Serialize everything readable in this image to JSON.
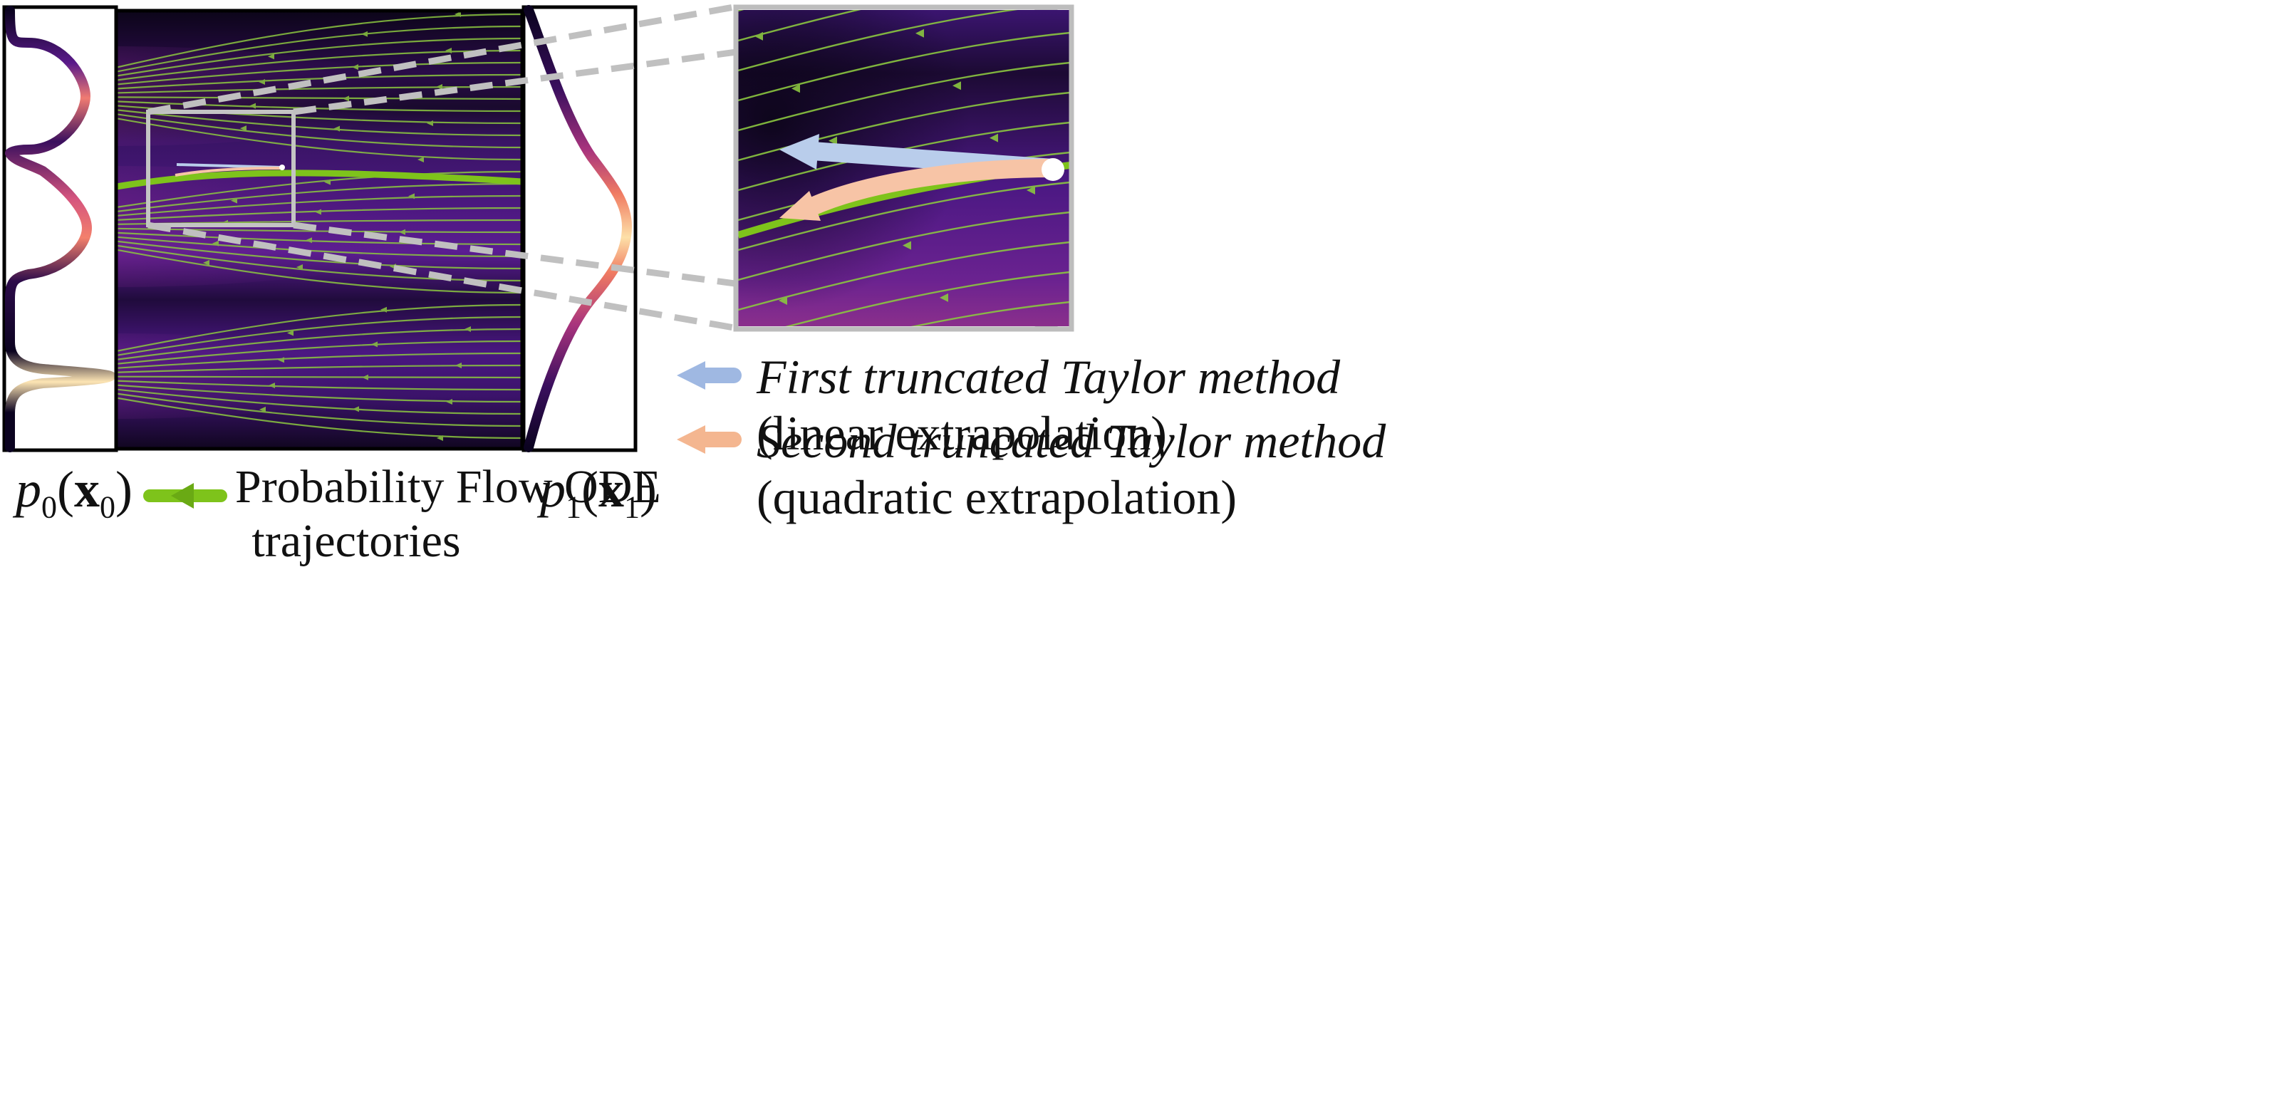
{
  "labels": {
    "p0": {
      "italic": "p",
      "sub": "0",
      "open": "(",
      "bold": "x",
      "bsub": "0",
      "close": ")"
    },
    "p1": {
      "italic": "p",
      "sub": "1",
      "open": "(",
      "bold": "x",
      "bsub": "1",
      "close": ")"
    },
    "ode_line1": "Probability Flow ODE",
    "ode_line2": "trajectories"
  },
  "legend": [
    {
      "title": "First truncated Taylor method",
      "subtitle": "(linear extrapolation)",
      "color": "#9fb8e2"
    },
    {
      "title": "Second truncated Taylor method",
      "subtitle": "(quadratic extrapolation)",
      "color": "#f4b690"
    }
  ],
  "colors": {
    "ode_green": "#7ec31b",
    "zoom_frame": "#bdbdbd",
    "linear_arrow": "#b9cdeb",
    "quadratic_arrow": "#f7c4a6",
    "field_dark": "#1a0a2e",
    "field_purple": "#5b1b8c",
    "field_pink": "#e06a7a",
    "field_peach": "#fcd9a6"
  }
}
